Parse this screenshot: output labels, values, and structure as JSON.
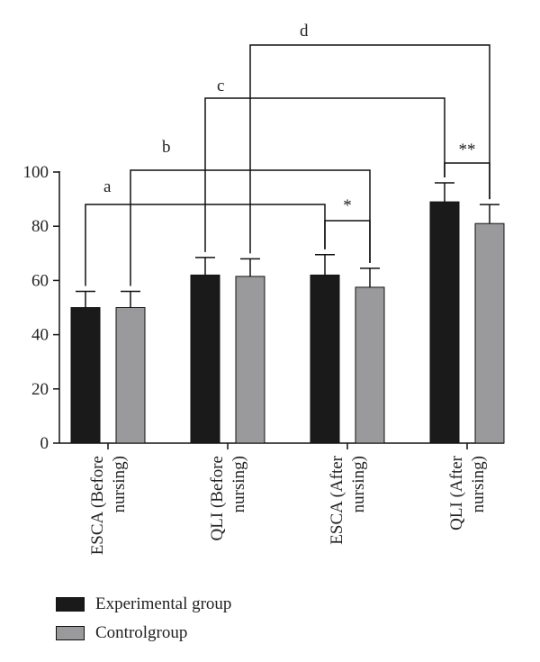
{
  "chart_data": {
    "type": "bar",
    "categories": [
      [
        "ESCA (Before",
        "nursing)"
      ],
      [
        "QLI (Before",
        "nursing)"
      ],
      [
        "ESCA (After",
        "nursing)"
      ],
      [
        "QLI (After",
        "nursing)"
      ]
    ],
    "series": [
      {
        "name": "Experimental group",
        "color": "#1a1a1a",
        "values": [
          50,
          62,
          62,
          89
        ],
        "errors": [
          6,
          6.5,
          7.5,
          7
        ]
      },
      {
        "name": "Controlgroup",
        "color": "#9a9a9c",
        "values": [
          50,
          61.5,
          57.5,
          81
        ],
        "errors": [
          6,
          6.5,
          7,
          7
        ]
      }
    ],
    "ylim": [
      0,
      100
    ],
    "yticks": [
      0,
      20,
      40,
      60,
      80,
      100
    ],
    "annotations": [
      {
        "label": "a",
        "from": [
          0,
          0
        ],
        "to": [
          2,
          0
        ]
      },
      {
        "label": "b",
        "from": [
          0,
          1
        ],
        "to": [
          2,
          1
        ]
      },
      {
        "label": "c",
        "from": [
          1,
          0
        ],
        "to": [
          3,
          0
        ]
      },
      {
        "label": "d",
        "from": [
          1,
          1
        ],
        "to": [
          3,
          1
        ]
      },
      {
        "label": "*",
        "from": [
          2,
          0
        ],
        "to": [
          2,
          1
        ]
      },
      {
        "label": "**",
        "from": [
          3,
          0
        ],
        "to": [
          3,
          1
        ]
      }
    ],
    "legend_position": "bottom-left"
  }
}
